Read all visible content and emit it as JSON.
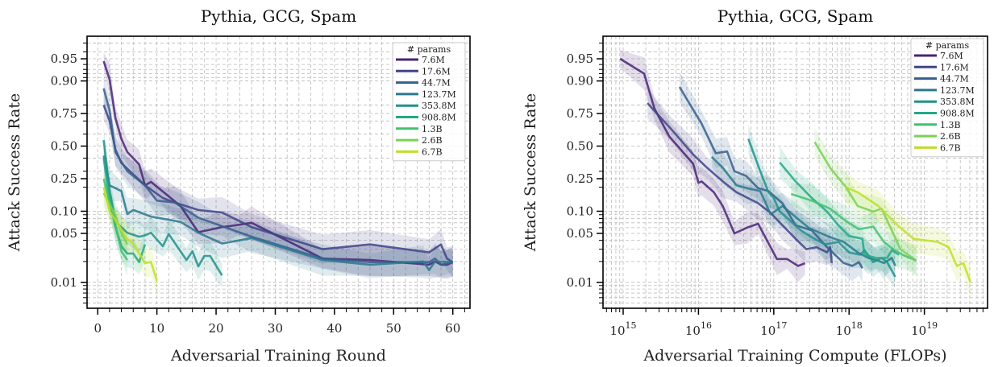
{
  "chart_data": [
    {
      "type": "line",
      "title": "Pythia, GCG, Spam",
      "xlabel": "Adversarial Training Round",
      "ylabel": "Attack Success Rate",
      "xscale": "linear",
      "yscale": "logit",
      "xlim": [
        -1.8,
        62.9
      ],
      "ylim": [
        0.0042,
        0.976
      ],
      "xticks": [
        0,
        10,
        20,
        30,
        40,
        50,
        60
      ],
      "xtick_labels": [
        "0",
        "10",
        "20",
        "30",
        "40",
        "50",
        "60"
      ],
      "yticks": [
        0.95,
        0.9,
        0.75,
        0.5,
        0.25,
        0.1,
        0.05,
        0.01
      ],
      "ytick_labels": [
        "0.95",
        "0.90",
        "0.75",
        "0.50",
        "0.25",
        "0.10",
        "0.05",
        "0.01"
      ],
      "grid": true,
      "legend": {
        "title": "# params",
        "placement": "top-right"
      },
      "series": [
        {
          "name": "7.6M",
          "color": "#482475",
          "x": [
            1,
            2,
            3,
            4,
            5,
            7,
            8,
            9,
            14,
            17,
            21,
            24,
            26,
            38,
            46,
            56,
            57,
            58,
            59,
            60
          ],
          "y": [
            0.946,
            0.905,
            0.72,
            0.56,
            0.45,
            0.35,
            0.21,
            0.23,
            0.117,
            0.052,
            0.061,
            0.066,
            0.07,
            0.022,
            0.021,
            0.018,
            0.02,
            0.018,
            0.018,
            0.0196
          ]
        },
        {
          "name": "17.6M",
          "color": "#414487",
          "x": [
            1,
            2,
            3,
            4,
            8,
            11,
            13,
            17,
            21,
            26,
            38,
            46,
            56,
            58,
            59,
            60
          ],
          "y": [
            0.8,
            0.7,
            0.47,
            0.36,
            0.21,
            0.148,
            0.13,
            0.104,
            0.096,
            0.061,
            0.03,
            0.035,
            0.027,
            0.035,
            0.022,
            0.0196
          ]
        },
        {
          "name": "44.7M",
          "color": "#355f8d",
          "x": [
            1,
            2,
            3,
            5,
            8,
            10,
            13,
            17,
            21,
            26,
            38,
            46,
            56,
            57,
            58,
            60
          ],
          "y": [
            0.875,
            0.77,
            0.45,
            0.3,
            0.21,
            0.137,
            0.13,
            0.082,
            0.063,
            0.045,
            0.022,
            0.0196,
            0.0196,
            0.022,
            0.018,
            0.0196
          ]
        },
        {
          "name": "123.7M",
          "color": "#2a788e",
          "x": [
            1,
            2,
            4,
            5,
            6,
            9,
            14,
            17,
            21,
            26,
            38,
            46,
            55,
            56,
            57,
            60
          ],
          "y": [
            0.42,
            0.21,
            0.18,
            0.092,
            0.104,
            0.085,
            0.072,
            0.051,
            0.036,
            0.043,
            0.021,
            0.018,
            0.02,
            0.015,
            0.02,
            0.0196
          ]
        },
        {
          "name": "353.8M",
          "color": "#21918c",
          "x": [
            1,
            2,
            3,
            5,
            7,
            8,
            9,
            11,
            12,
            15,
            16,
            17,
            18,
            19,
            21
          ],
          "y": [
            0.55,
            0.185,
            0.072,
            0.051,
            0.045,
            0.047,
            0.051,
            0.033,
            0.049,
            0.021,
            0.028,
            0.017,
            0.024,
            0.024,
            0.0126
          ]
        },
        {
          "name": "908.8M",
          "color": "#22a884",
          "x": [
            1,
            2,
            3,
            4,
            5,
            6,
            7,
            8
          ],
          "y": [
            0.4,
            0.137,
            0.061,
            0.033,
            0.026,
            0.026,
            0.0196,
            0.035
          ]
        },
        {
          "name": "1.3B",
          "color": "#44bf70",
          "x": [
            1,
            3,
            4,
            5
          ],
          "y": [
            0.25,
            0.065,
            0.028,
            0.021
          ]
        },
        {
          "name": "2.6B",
          "color": "#7ad151",
          "x": [
            1,
            3,
            4,
            5
          ],
          "y": [
            0.17,
            0.088,
            0.051,
            0.035
          ]
        },
        {
          "name": "6.7B",
          "color": "#bddf26",
          "x": [
            1,
            2,
            5,
            6,
            8,
            9,
            10
          ],
          "y": [
            0.2,
            0.1,
            0.042,
            0.036,
            0.019,
            0.0196,
            0.0106
          ]
        }
      ]
    },
    {
      "type": "line",
      "title": "Pythia, GCG, Spam",
      "xlabel": "Adversarial Training Compute (FLOPs)",
      "ylabel": "Attack Success Rate",
      "xscale": "log",
      "yscale": "logit",
      "xlim": [
        540000000000000.0,
        6.9e+19
      ],
      "ylim": [
        0.0042,
        0.976
      ],
      "xticks": [
        1000000000000000.0,
        1e+16,
        1e+17,
        1e+18,
        1e+19
      ],
      "xtick_labels": [
        {
          "base": "10",
          "exp": "15"
        },
        {
          "base": "10",
          "exp": "16"
        },
        {
          "base": "10",
          "exp": "17"
        },
        {
          "base": "10",
          "exp": "18"
        },
        {
          "base": "10",
          "exp": "19"
        }
      ],
      "yticks": [
        0.95,
        0.9,
        0.75,
        0.5,
        0.25,
        0.1,
        0.05,
        0.01
      ],
      "ytick_labels": [
        "0.95",
        "0.90",
        "0.75",
        "0.50",
        "0.25",
        "0.10",
        "0.05",
        "0.01"
      ],
      "grid": true,
      "legend": {
        "title": "# params",
        "placement": "top-right"
      },
      "series": [
        {
          "name": "7.6M",
          "color": "#482475",
          "x": [
            910000000000000.0,
            1900000000000000.0,
            2600000000000000.0,
            4100000000000000.0,
            8500000000000000.0,
            1e+16,
            1.1e+16,
            1.6e+16,
            2.1e+16,
            3e+16,
            4.4e+16,
            6.2e+16,
            1.1e+17,
            1.5e+17,
            2.1e+17,
            2.6e+17
          ],
          "y": [
            0.95,
            0.92,
            0.78,
            0.58,
            0.355,
            0.225,
            0.233,
            0.174,
            0.117,
            0.05,
            0.06,
            0.068,
            0.0217,
            0.0217,
            0.0173,
            0.0189
          ]
        },
        {
          "name": "17.6M",
          "color": "#414487",
          "x": [
            2100000000000000.0,
            4100000000000000.0,
            8500000000000000.0,
            1.3e+16,
            2.1e+16,
            3.2e+16,
            6.2e+16,
            9.1e+16,
            1.3e+17,
            1.95e+17,
            2.7e+17,
            3.7e+17,
            5.1e+17,
            5.6e+17,
            5.9e+17
          ],
          "y": [
            0.81,
            0.656,
            0.43,
            0.325,
            0.233,
            0.174,
            0.127,
            0.095,
            0.065,
            0.042,
            0.03,
            0.032,
            0.027,
            0.032,
            0.019
          ]
        },
        {
          "name": "44.7M",
          "color": "#355f8d",
          "x": [
            5600000000000000.0,
            1.1e+16,
            1.7e+16,
            2.4e+16,
            3e+16,
            4.3e+16,
            6.2e+16,
            8.5e+16,
            1.3e+17,
            1.95e+17,
            3.2e+17,
            5.1e+17,
            8.5e+17,
            1.1e+18,
            1.35e+18,
            1.5e+18
          ],
          "y": [
            0.88,
            0.68,
            0.44,
            0.455,
            0.3,
            0.267,
            0.195,
            0.18,
            0.127,
            0.065,
            0.055,
            0.032,
            0.019,
            0.0173,
            0.0196,
            0.016
          ]
        },
        {
          "name": "123.7M",
          "color": "#2a788e",
          "x": [
            1.5e+16,
            2.1e+16,
            3.2e+16,
            4.4e+16,
            6.6e+16,
            9.1e+16,
            1.3e+17,
            1.95e+17,
            2.9e+17,
            5.1e+17,
            8.5e+17,
            1.3e+18,
            1.8e+18,
            2.3e+18,
            2.9e+18,
            3.7e+18,
            4.1e+18
          ],
          "y": [
            0.41,
            0.325,
            0.21,
            0.195,
            0.18,
            0.091,
            0.117,
            0.084,
            0.06,
            0.046,
            0.038,
            0.027,
            0.0225,
            0.021,
            0.019,
            0.0225,
            0.0173
          ]
        },
        {
          "name": "353.8M",
          "color": "#21918c",
          "x": [
            4.6e+16,
            6.6e+16,
            8.5e+16,
            1e+17,
            1.2e+17,
            1.6e+17,
            2.3e+17,
            3.2e+17,
            4.8e+17,
            7.2e+17,
            1e+18,
            1.4e+18,
            1.6e+18,
            2.1e+18,
            2.7e+18,
            3.2e+18,
            4.1e+18
          ],
          "y": [
            0.56,
            0.3,
            0.174,
            0.148,
            0.099,
            0.077,
            0.055,
            0.044,
            0.035,
            0.038,
            0.027,
            0.025,
            0.029,
            0.0196,
            0.0225,
            0.0196,
            0.012
          ]
        },
        {
          "name": "908.8M",
          "color": "#22a884",
          "x": [
            1.2e+17,
            1.95e+17,
            3.2e+17,
            5.1e+17,
            7.2e+17,
            1e+18,
            1.5e+18,
            1.6e+18,
            2.3e+18,
            3.2e+18,
            3.7e+18,
            4.6e+18
          ],
          "y": [
            0.366,
            0.233,
            0.148,
            0.099,
            0.065,
            0.046,
            0.042,
            0.025,
            0.0225,
            0.0225,
            0.029,
            0.025
          ]
        },
        {
          "name": "1.3B",
          "color": "#44bf70",
          "x": [
            1.7e+17,
            3.2e+17,
            5.6e+17,
            9.1e+17,
            1.35e+18,
            2.1e+18,
            2.9e+18,
            3.7e+18,
            5.1e+18,
            7.8e+18
          ],
          "y": [
            0.166,
            0.137,
            0.108,
            0.074,
            0.057,
            0.062,
            0.038,
            0.031,
            0.025,
            0.0206
          ]
        },
        {
          "name": "2.6B",
          "color": "#7ad151",
          "x": [
            3.5e+17,
            5.6e+17,
            9.1e+17,
            1.3e+18,
            2.1e+18,
            2.7e+18,
            3.7e+18,
            4.8e+18,
            7.8e+18
          ],
          "y": [
            0.535,
            0.325,
            0.2,
            0.117,
            0.099,
            0.108,
            0.055,
            0.03,
            0.0206
          ]
        },
        {
          "name": "6.7B",
          "color": "#bddf26",
          "x": [
            9.1e+17,
            1.3e+18,
            2.45e+18,
            4.4e+18,
            7.2e+18,
            1.5e+19,
            2.1e+19,
            2.7e+19,
            3.3e+19,
            4.1e+19
          ],
          "y": [
            0.2,
            0.174,
            0.117,
            0.065,
            0.042,
            0.038,
            0.032,
            0.0173,
            0.0189,
            0.01
          ]
        }
      ]
    }
  ]
}
